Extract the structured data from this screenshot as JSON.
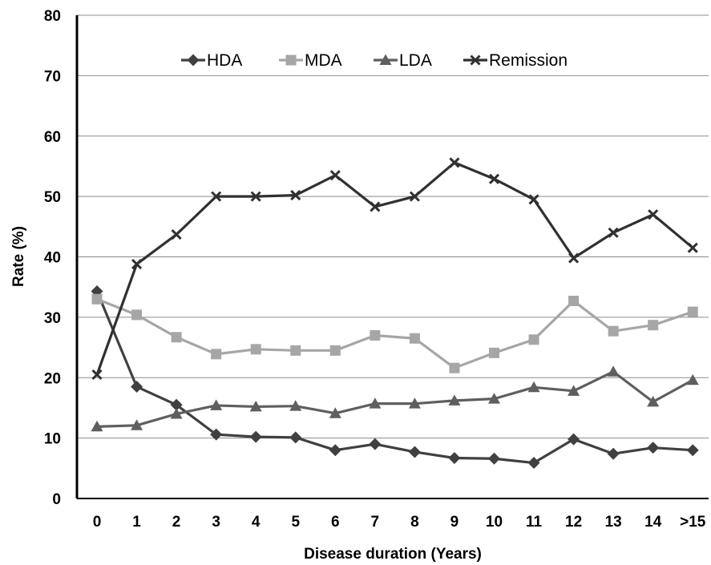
{
  "chart_data": {
    "type": "line",
    "title": "",
    "xlabel": "Disease duration (Years)",
    "ylabel": "Rate (%)",
    "ylim": [
      0,
      80
    ],
    "yticks": [
      0,
      10,
      20,
      30,
      40,
      50,
      60,
      70,
      80
    ],
    "categories": [
      "0",
      "1",
      "2",
      "3",
      "4",
      "5",
      "6",
      "7",
      "8",
      "9",
      "10",
      "11",
      "12",
      "13",
      "14",
      ">15"
    ],
    "grid": "horizontal",
    "legend_position": "top",
    "series": [
      {
        "name": "HDA",
        "marker": "diamond",
        "color": "#404040",
        "values": [
          34.3,
          18.5,
          15.5,
          10.6,
          10.2,
          10.1,
          8.0,
          9.0,
          7.7,
          6.7,
          6.6,
          5.9,
          9.8,
          7.4,
          8.4,
          8.0
        ]
      },
      {
        "name": "MDA",
        "marker": "square",
        "color": "#a6a6a6",
        "values": [
          33.0,
          30.4,
          26.7,
          23.9,
          24.7,
          24.5,
          24.5,
          27.0,
          26.5,
          21.6,
          24.1,
          26.3,
          32.7,
          27.7,
          28.7,
          30.9
        ]
      },
      {
        "name": "LDA",
        "marker": "triangle",
        "color": "#5f5f5f",
        "values": [
          11.9,
          12.1,
          14.0,
          15.4,
          15.2,
          15.3,
          14.1,
          15.7,
          15.7,
          16.2,
          16.5,
          18.4,
          17.8,
          21.0,
          16.0,
          19.6
        ]
      },
      {
        "name": "Remission",
        "marker": "x",
        "color": "#303030",
        "values": [
          20.5,
          38.8,
          43.7,
          50.0,
          50.0,
          50.2,
          53.5,
          48.3,
          50.0,
          55.6,
          52.9,
          49.5,
          39.8,
          44.0,
          47.0,
          41.5
        ]
      }
    ]
  }
}
